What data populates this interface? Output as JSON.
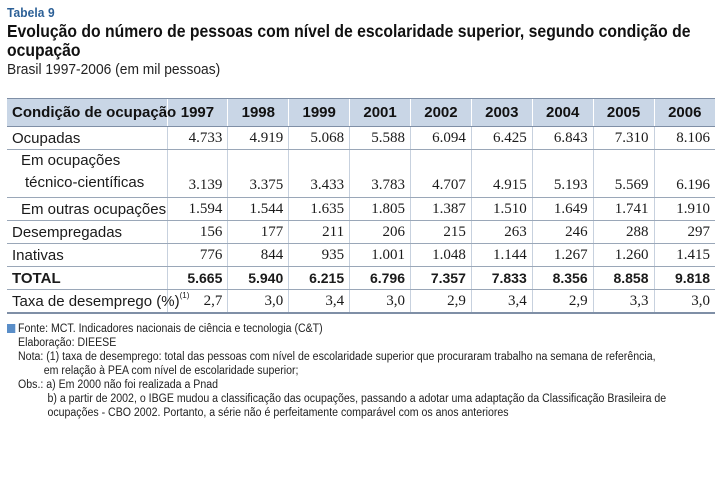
{
  "header": {
    "label": "Tabela 9",
    "title": "Evolução do número de pessoas com nível de escolaridade superior, segundo condição de ocupação",
    "subtitle": "Brasil 1997-2006 (em mil pessoas)"
  },
  "table": {
    "corner": "Condição de ocupação",
    "years": [
      "1997",
      "1998",
      "1999",
      "2001",
      "2002",
      "2003",
      "2004",
      "2005",
      "2006"
    ],
    "rows": [
      {
        "label": "Ocupadas",
        "values": [
          "4.733",
          "4.919",
          "5.068",
          "5.588",
          "6.094",
          "6.425",
          "6.843",
          "7.310",
          "8.106"
        ]
      },
      {
        "label_line1": "Em ocupações",
        "label_line2": "técnico-científicas",
        "values": [
          "3.139",
          "3.375",
          "3.433",
          "3.783",
          "4.707",
          "4.915",
          "5.193",
          "5.569",
          "6.196"
        ]
      },
      {
        "label": "Em outras ocupações",
        "values": [
          "1.594",
          "1.544",
          "1.635",
          "1.805",
          "1.387",
          "1.510",
          "1.649",
          "1.741",
          "1.910"
        ]
      },
      {
        "label": "Desempregadas",
        "values": [
          "156",
          "177",
          "211",
          "206",
          "215",
          "263",
          "246",
          "288",
          "297"
        ]
      },
      {
        "label": "Inativas",
        "values": [
          "776",
          "844",
          "935",
          "1.001",
          "1.048",
          "1.144",
          "1.267",
          "1.260",
          "1.415"
        ]
      },
      {
        "label": "TOTAL",
        "values": [
          "5.665",
          "5.940",
          "6.215",
          "6.796",
          "7.357",
          "7.833",
          "8.356",
          "8.858",
          "9.818"
        ]
      },
      {
        "label": "Taxa de desemprego (%)",
        "footnote_mark": "(1)",
        "values": [
          "2,7",
          "3,0",
          "3,4",
          "3,0",
          "2,9",
          "3,4",
          "2,9",
          "3,3",
          "3,0"
        ]
      }
    ]
  },
  "notes": {
    "source": "Fonte: MCT. Indicadores nacionais de ciência e tecnologia (C&T)",
    "elaboration": "Elaboração: DIEESE",
    "note_line1": "Nota: (1) taxa de desemprego: total das pessoas com nível de escolaridade superior que procuraram trabalho na semana de referência,",
    "note_line2": "em relação à PEA com nível de escolaridade superior;",
    "obs_a": "Obs.: a) Em 2000 não foi realizada a Pnad",
    "obs_b1": "b) a partir de 2002, o IBGE mudou a classificação das ocupações, passando a adotar uma adaptação da Classificação Brasileira de",
    "obs_b2": "ocupações - CBO 2002. Portanto, a série não é perfeitamente comparável com os anos anteriores"
  },
  "colors": {
    "accent": "#2b5f96",
    "header_bg": "#c9d6e6",
    "bullet": "#5a8ec8"
  }
}
